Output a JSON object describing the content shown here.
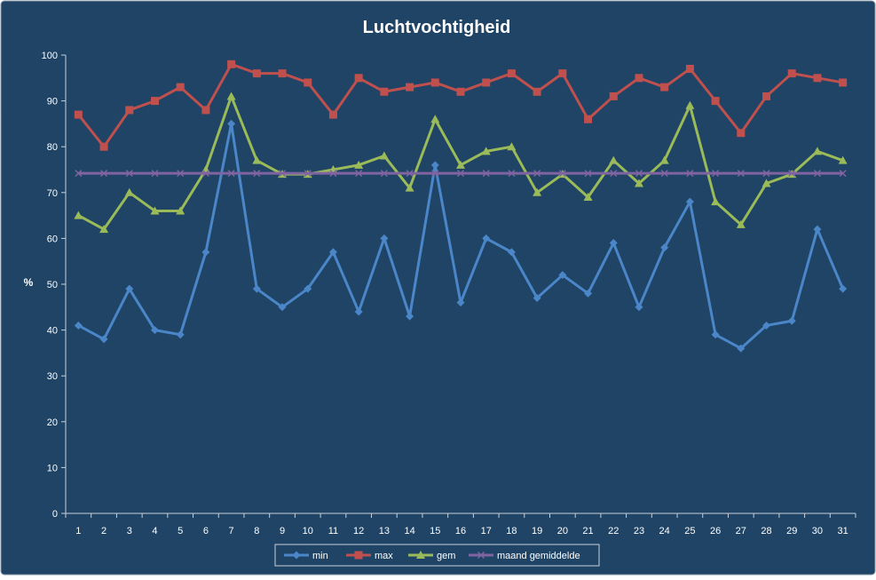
{
  "chart_data": {
    "type": "line",
    "title": "Luchtvochtigheid",
    "xlabel": "",
    "ylabel": "%",
    "ylim": [
      0,
      100
    ],
    "ytick_step": 10,
    "grid": false,
    "legend_position": "bottom",
    "background_color": "#1F4466",
    "plot_border_color": "#8A98A8",
    "axis_color": "#C8D0DA",
    "text_color": "#FFFFFF",
    "categories": [
      "1",
      "2",
      "3",
      "4",
      "5",
      "6",
      "7",
      "8",
      "9",
      "10",
      "11",
      "12",
      "13",
      "14",
      "15",
      "16",
      "17",
      "18",
      "19",
      "20",
      "21",
      "22",
      "23",
      "24",
      "25",
      "26",
      "27",
      "28",
      "29",
      "30",
      "31"
    ],
    "series": [
      {
        "name": "min",
        "color": "#4A86C8",
        "marker": "diamond",
        "values": [
          41,
          38,
          49,
          40,
          39,
          57,
          85,
          49,
          45,
          49,
          57,
          44,
          60,
          43,
          76,
          46,
          60,
          57,
          47,
          52,
          48,
          59,
          45,
          58,
          68,
          39,
          36,
          41,
          42,
          62,
          49
        ]
      },
      {
        "name": "max",
        "color": "#C0504D",
        "marker": "square",
        "values": [
          87,
          80,
          88,
          90,
          93,
          88,
          98,
          96,
          96,
          94,
          87,
          95,
          92,
          93,
          94,
          92,
          94,
          96,
          92,
          96,
          86,
          91,
          95,
          93,
          97,
          90,
          83,
          91,
          96,
          95,
          94
        ]
      },
      {
        "name": "gem",
        "color": "#9BBB59",
        "marker": "triangle",
        "values": [
          65,
          62,
          70,
          66,
          66,
          75,
          91,
          77,
          74,
          74,
          75,
          76,
          78,
          71,
          86,
          76,
          79,
          80,
          70,
          74,
          69,
          77,
          72,
          77,
          89,
          68,
          63,
          72,
          74,
          79,
          77
        ]
      },
      {
        "name": "maand gemiddelde",
        "color": "#8064A2",
        "marker": "x",
        "values": [
          74.2,
          74.2,
          74.2,
          74.2,
          74.2,
          74.2,
          74.2,
          74.2,
          74.2,
          74.2,
          74.2,
          74.2,
          74.2,
          74.2,
          74.2,
          74.2,
          74.2,
          74.2,
          74.2,
          74.2,
          74.2,
          74.2,
          74.2,
          74.2,
          74.2,
          74.2,
          74.2,
          74.2,
          74.2,
          74.2,
          74.2
        ]
      }
    ]
  }
}
